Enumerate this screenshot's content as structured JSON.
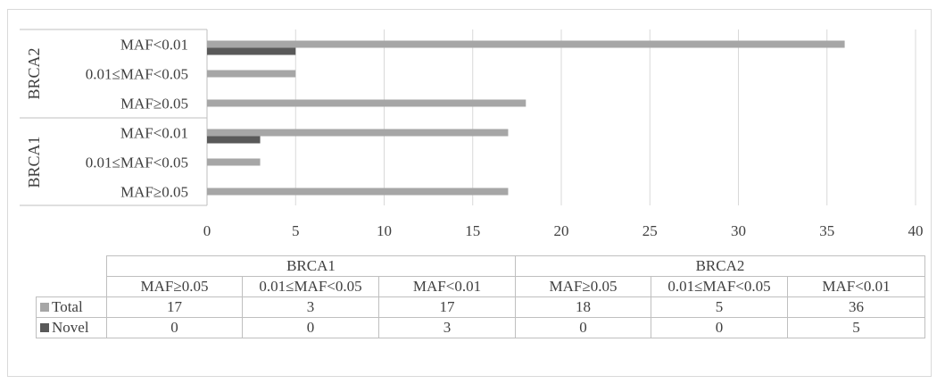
{
  "chart_data": {
    "type": "bar",
    "orientation": "horizontal",
    "groups": [
      {
        "name": "BRCA2",
        "categories": [
          "MAF<0.01",
          "0.01≤MAF<0.05",
          "MAF≥0.05"
        ]
      },
      {
        "name": "BRCA1",
        "categories": [
          "MAF<0.01",
          "0.01≤MAF<0.05",
          "MAF≥0.05"
        ]
      }
    ],
    "series": [
      {
        "name": "Total",
        "color": "#a6a6a6",
        "values": {
          "BRCA2": [
            36,
            5,
            18
          ],
          "BRCA1": [
            17,
            3,
            17
          ]
        }
      },
      {
        "name": "Novel",
        "color": "#595959",
        "values": {
          "BRCA2": [
            5,
            0,
            0
          ],
          "BRCA1": [
            3,
            0,
            0
          ]
        }
      }
    ],
    "xlim": [
      0,
      40
    ],
    "xticks": [
      0,
      5,
      10,
      15,
      20,
      25,
      30,
      35,
      40
    ],
    "grid": true,
    "legend": "table-below"
  },
  "table": {
    "groups": [
      "BRCA1",
      "BRCA2"
    ],
    "columns": [
      "MAF≥0.05",
      "0.01≤MAF<0.05",
      "MAF<0.01",
      "MAF≥0.05",
      "0.01≤MAF<0.05",
      "MAF<0.01"
    ],
    "rows": [
      {
        "label": "Total",
        "color": "#a6a6a6",
        "values": [
          "17",
          "3",
          "17",
          "18",
          "5",
          "36"
        ]
      },
      {
        "label": "Novel",
        "color": "#595959",
        "values": [
          "0",
          "0",
          "3",
          "0",
          "0",
          "5"
        ]
      }
    ]
  }
}
